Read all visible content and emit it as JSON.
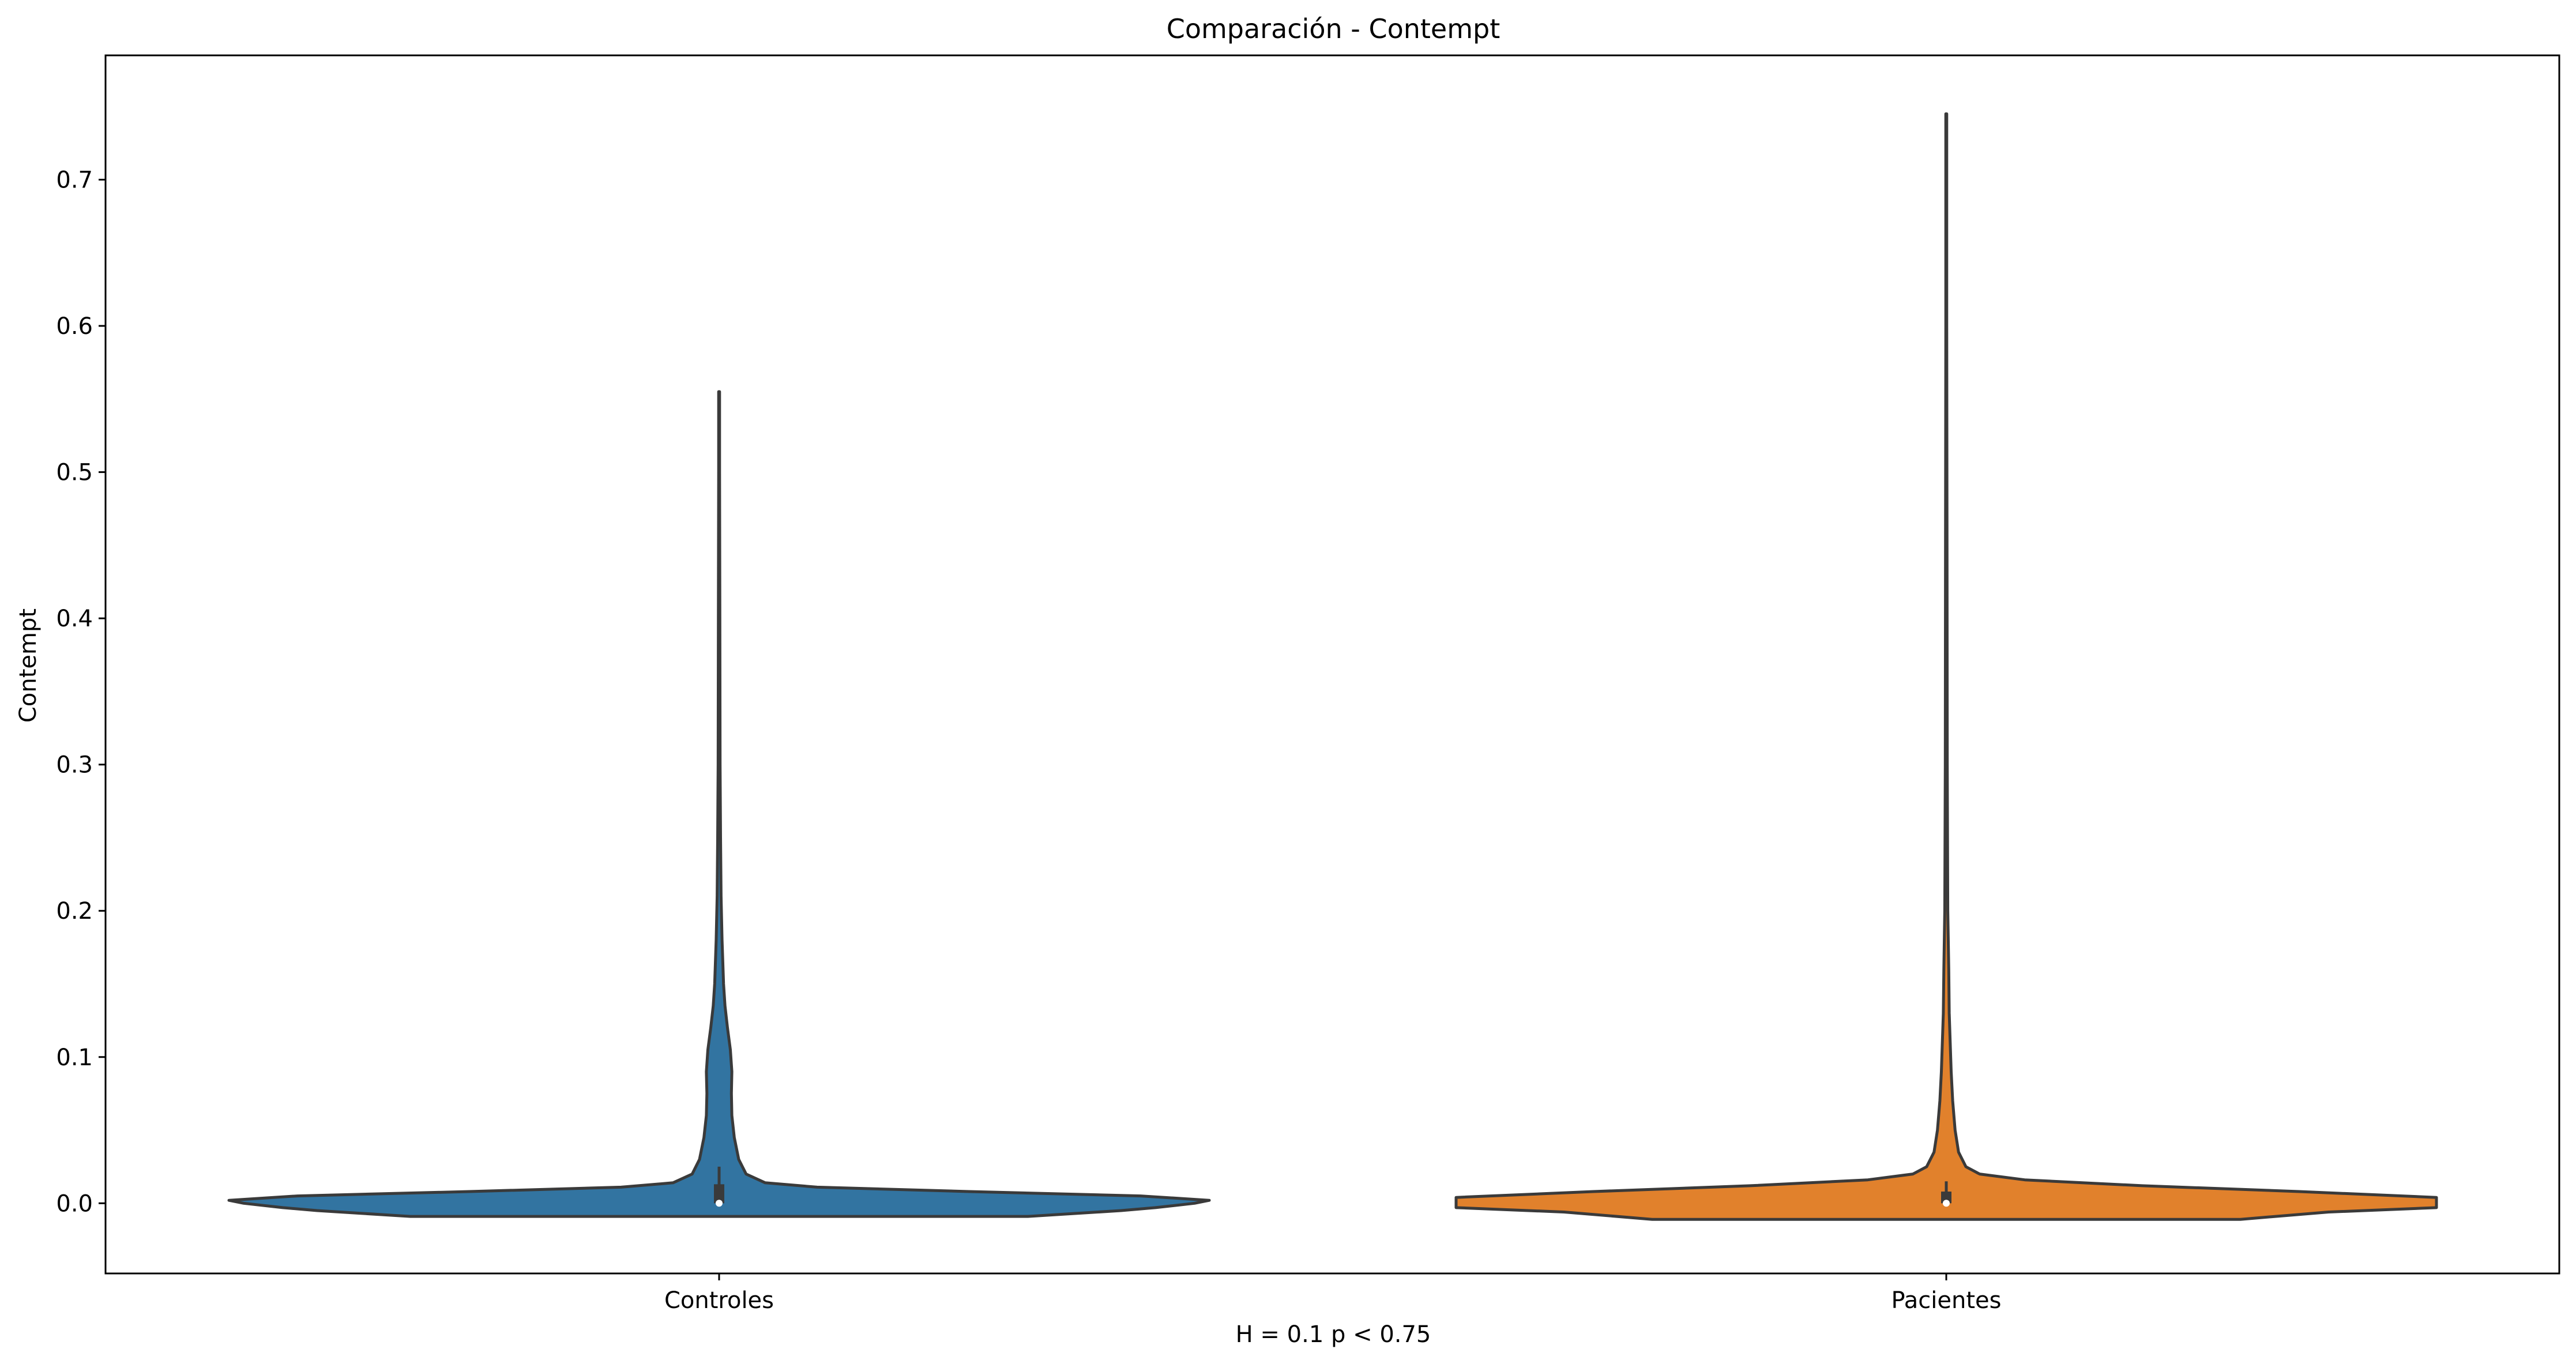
{
  "chart_data": {
    "type": "violin",
    "title": "Comparación - Contempt",
    "xlabel": "H = 0.1 p < 0.75",
    "ylabel": "Contempt",
    "categories": [
      "Controles",
      "Pacientes"
    ],
    "ylim": [
      -0.048,
      0.785
    ],
    "yticks": [
      0.0,
      0.1,
      0.2,
      0.3,
      0.4,
      0.5,
      0.6,
      0.7
    ],
    "ytick_labels": [
      "0.0",
      "0.1",
      "0.2",
      "0.3",
      "0.4",
      "0.5",
      "0.6",
      "0.7"
    ],
    "grid": false,
    "series": [
      {
        "category": "Controles",
        "color": "#3274a1",
        "edge_color": "#3a3a3a",
        "density_profile": [
          [
            -0.009,
            0.63
          ],
          [
            -0.005,
            0.82
          ],
          [
            -0.003,
            0.89
          ],
          [
            0.0,
            0.97
          ],
          [
            0.002,
            1.0
          ],
          [
            0.005,
            0.86
          ],
          [
            0.008,
            0.51
          ],
          [
            0.011,
            0.2
          ],
          [
            0.014,
            0.094
          ],
          [
            0.02,
            0.055
          ],
          [
            0.03,
            0.04
          ],
          [
            0.045,
            0.031
          ],
          [
            0.06,
            0.026
          ],
          [
            0.075,
            0.025
          ],
          [
            0.09,
            0.026
          ],
          [
            0.105,
            0.023
          ],
          [
            0.12,
            0.017
          ],
          [
            0.135,
            0.012
          ],
          [
            0.15,
            0.009
          ],
          [
            0.18,
            0.006
          ],
          [
            0.21,
            0.004
          ],
          [
            0.25,
            0.003
          ],
          [
            0.3,
            0.002
          ],
          [
            0.4,
            0.0015
          ],
          [
            0.5,
            0.001
          ],
          [
            0.555,
            0.001
          ]
        ],
        "box": {
          "q1": 0.0,
          "median": 0.0,
          "q3": 0.013,
          "whisker_low": 0.0,
          "whisker_high": 0.025
        }
      },
      {
        "category": "Pacientes",
        "color": "#e1812c",
        "edge_color": "#3a3a3a",
        "density_profile": [
          [
            -0.011,
            0.6
          ],
          [
            -0.006,
            0.78
          ],
          [
            -0.003,
            1.0
          ],
          [
            0.0,
            1.0
          ],
          [
            0.004,
            1.0
          ],
          [
            0.008,
            0.72
          ],
          [
            0.012,
            0.4
          ],
          [
            0.016,
            0.16
          ],
          [
            0.02,
            0.068
          ],
          [
            0.025,
            0.04
          ],
          [
            0.035,
            0.025
          ],
          [
            0.05,
            0.018
          ],
          [
            0.07,
            0.013
          ],
          [
            0.09,
            0.01
          ],
          [
            0.11,
            0.008
          ],
          [
            0.13,
            0.006
          ],
          [
            0.16,
            0.005
          ],
          [
            0.2,
            0.003
          ],
          [
            0.3,
            0.002
          ],
          [
            0.45,
            0.0015
          ],
          [
            0.6,
            0.001
          ],
          [
            0.745,
            0.001
          ]
        ],
        "box": {
          "q1": 0.0,
          "median": 0.0,
          "q3": 0.008,
          "whisker_low": 0.0,
          "whisker_high": 0.015
        }
      }
    ]
  }
}
